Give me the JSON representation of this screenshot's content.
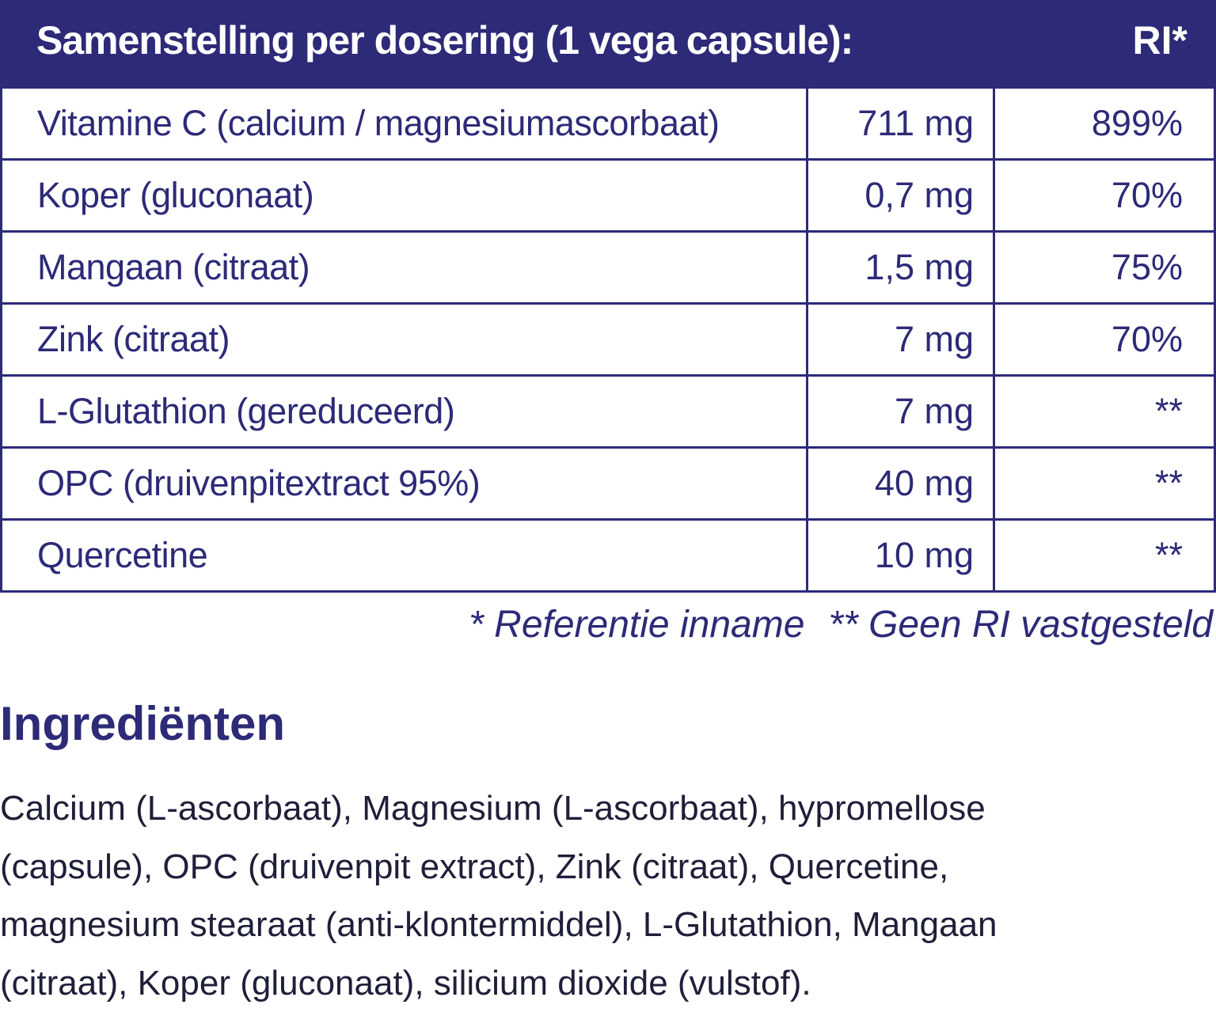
{
  "header": {
    "title": "Samenstelling per dosering (1 vega capsule):",
    "ri": "RI*"
  },
  "table": {
    "rows": [
      [
        "Vitamine C (calcium / magnesiumascorbaat)",
        "711 mg",
        "899%"
      ],
      [
        "Koper (gluconaat)",
        "0,7 mg",
        "70%"
      ],
      [
        "Mangaan (citraat)",
        "1,5 mg",
        "75%"
      ],
      [
        "Zink (citraat)",
        "7 mg",
        "70%"
      ],
      [
        "L-Glutathion (gereduceerd)",
        "7 mg",
        "**"
      ],
      [
        "OPC (druivenpitextract 95%)",
        "40 mg",
        "**"
      ],
      [
        "Quercetine",
        "10 mg",
        "**"
      ]
    ]
  },
  "footnotes": [
    "* Referentie inname",
    "** Geen RI vastgesteld"
  ],
  "ingredients": {
    "title": "Ingrediënten",
    "lines": [
      "Calcium (L-ascorbaat), Magnesium (L-ascorbaat), hypromellose",
      "(capsule), OPC (druivenpit extract), Zink (citraat), Quercetine,",
      "magnesium stearaat (anti-klontermiddel), L-Glutathion, Mangaan",
      "(citraat), Koper (gluconaat), silicium dioxide (vulstof)."
    ]
  }
}
